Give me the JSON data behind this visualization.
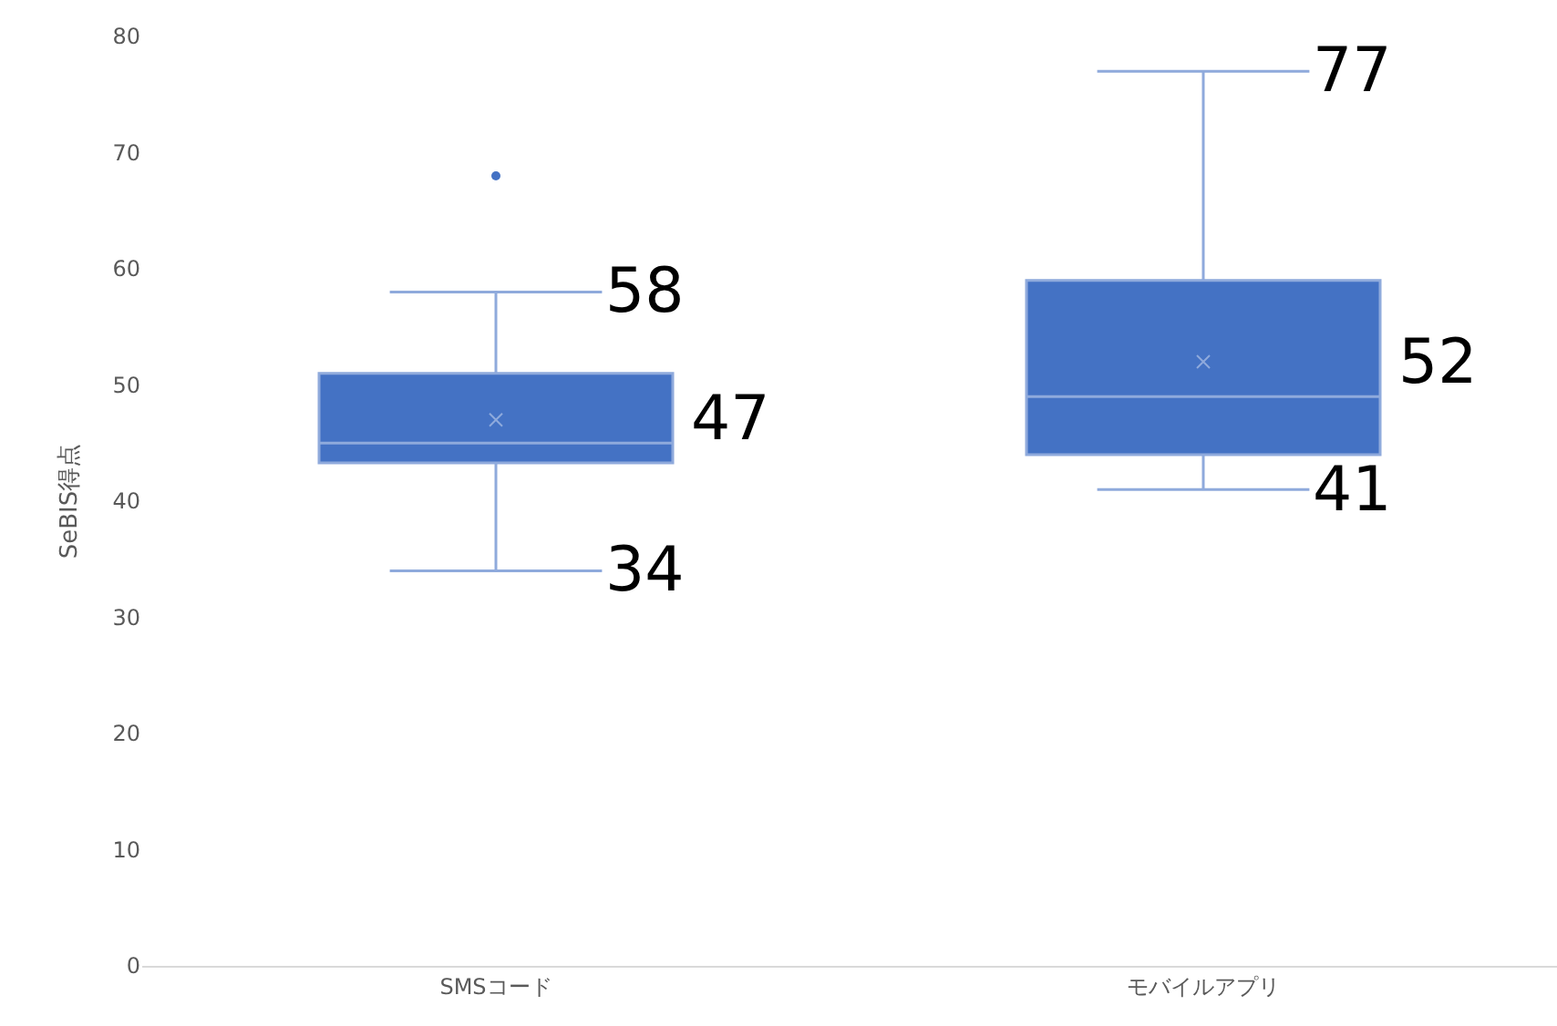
{
  "chart_data": {
    "type": "box",
    "ylabel": "SeBIS得点",
    "categories": [
      "SMSコード",
      "モバイルアプリ"
    ],
    "boxes": [
      {
        "low": 34,
        "q1": 43.3,
        "median": 45,
        "q3": 51,
        "high": 58,
        "mean": 47,
        "outliers": [
          68
        ]
      },
      {
        "low": 41,
        "q1": 44,
        "median": 49,
        "q3": 59,
        "high": 77,
        "mean": 52
      }
    ],
    "color": "#4472c4",
    "ylim": [
      0,
      80
    ],
    "yticks": [
      0,
      10,
      20,
      30,
      40,
      50,
      60,
      70,
      80
    ],
    "grid": false,
    "annotations": [
      {
        "text": "58",
        "x": "SMSコード",
        "y": 58
      },
      "47",
      {
        "text": "34",
        "x": "SMSコード",
        "y": 34
      },
      {
        "text": "77",
        "x": "モバイルアプリ",
        "y": 77
      },
      "52",
      {
        "text": "41",
        "x": "モバイルアプリ",
        "y": 41
      }
    ]
  }
}
